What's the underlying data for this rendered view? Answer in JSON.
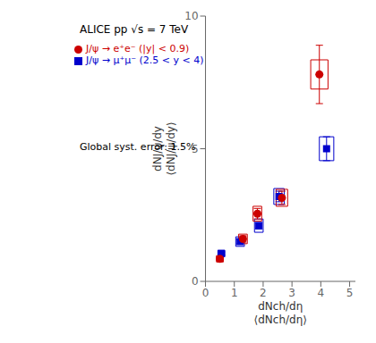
{
  "chart_data": {
    "type": "scatter",
    "title": "ALICE pp √s = 7 TeV",
    "x_label": "dNch/dη\n⟨dNch/dη⟩",
    "y_label": "dNJ/ψ/dy\n⟨dNJ/ψ/dy⟩",
    "annotation": "Global syst. error: 1.5%",
    "xlim": [
      0,
      5.2
    ],
    "ylim": [
      0,
      10
    ],
    "xticks": [
      0,
      1,
      2,
      3,
      4,
      5
    ],
    "yticks": [
      0,
      5,
      10
    ],
    "grid": false,
    "legend": "upper left",
    "series": [
      {
        "name": "J/ψ → μ⁺μ⁻ (2.5 < y < 4)",
        "color": "#0000cc",
        "marker": "square",
        "x": [
          0.55,
          1.2,
          1.85,
          2.55,
          4.2
        ],
        "values": [
          1.05,
          1.5,
          2.1,
          3.2,
          5.0
        ],
        "yerr": [
          0.06,
          0.09,
          0.12,
          0.2,
          0.45
        ],
        "syst_x": [
          0.12,
          0.15,
          0.15,
          0.18,
          0.25
        ],
        "syst_y": [
          0.12,
          0.18,
          0.25,
          0.3,
          0.45
        ]
      },
      {
        "name": "J/ψ → e⁺e⁻ (|y| < 0.9)",
        "color": "#cc0000",
        "marker": "circle",
        "x": [
          0.5,
          1.3,
          1.8,
          2.65,
          3.95
        ],
        "values": [
          0.85,
          1.6,
          2.55,
          3.15,
          7.8
        ],
        "yerr": [
          0.07,
          0.12,
          0.2,
          0.25,
          1.1
        ],
        "syst_x": [
          0.12,
          0.15,
          0.15,
          0.2,
          0.3
        ],
        "syst_y": [
          0.12,
          0.18,
          0.28,
          0.32,
          0.55
        ]
      }
    ]
  }
}
